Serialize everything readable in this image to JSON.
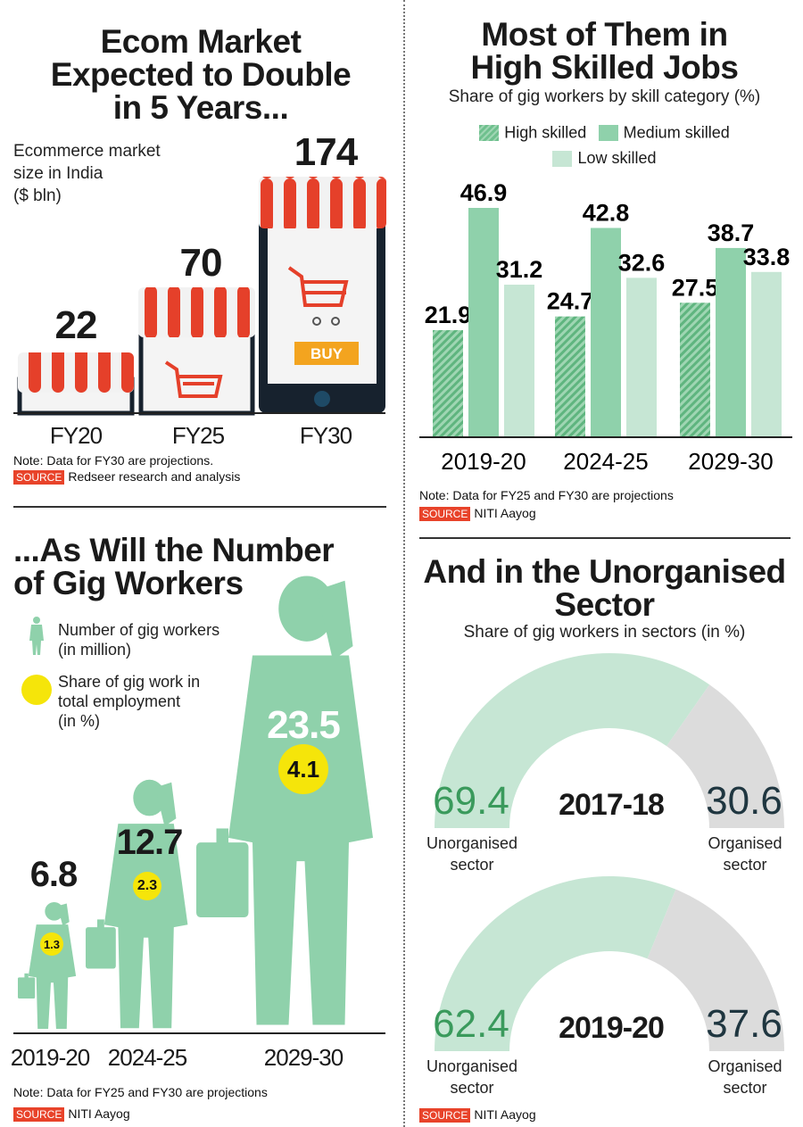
{
  "colors": {
    "green_dark": "#6fc08e",
    "green_mid": "#8fd1ab",
    "green_light": "#c6e6d4",
    "gray": "#dcdcdc",
    "awning_red": "#e5402a",
    "phone": "#17222e",
    "yellow": "#f5e50a",
    "source_red": "#e8432a",
    "buy_orange": "#f3a41f"
  },
  "ecom": {
    "title_lines": [
      "Ecom Market",
      "Expected to Double",
      "in 5 Years..."
    ],
    "subtitle_lines": [
      "Ecommerce market",
      "size in India",
      "($ bln)"
    ],
    "buy_label": "BUY",
    "note": "Note: Data for FY30 are projections.",
    "source_tag": "SOURCE",
    "source": "Redseer research and analysis"
  },
  "skills": {
    "title_lines": [
      "Most of Them in",
      "High Skilled Jobs"
    ],
    "subtitle": "Share of gig workers by skill category (%)",
    "note": "Note: Data for FY25 and FY30 are projections",
    "source_tag": "SOURCE",
    "source": "NITI Aayog"
  },
  "gig": {
    "title_lines": [
      "...As Will the Number",
      "of Gig Workers"
    ],
    "legend": [
      {
        "label_lines": [
          "Number of gig workers",
          "(in million)"
        ]
      },
      {
        "label_lines": [
          "Share of gig work in",
          "total employment",
          "(in %)"
        ]
      }
    ],
    "note": "Note: Data for FY25 and FY30 are projections",
    "source_tag": "SOURCE",
    "source": "NITI Aayog"
  },
  "sector": {
    "title_lines": [
      "And in the Unorganised",
      "Sector"
    ],
    "subtitle": "Share of gig workers in sectors (in %)",
    "left_label_lines": [
      "Unorganised",
      "sector"
    ],
    "right_label_lines": [
      "Organised",
      "sector"
    ],
    "source_tag": "SOURCE",
    "source": "NITI Aayog"
  },
  "chart_data": [
    {
      "type": "bar",
      "title": "Ecommerce market size in India ($ bln)",
      "categories": [
        "FY20",
        "FY25",
        "FY30"
      ],
      "values": [
        22,
        70,
        174
      ],
      "labels": [
        "22",
        "70",
        "174"
      ]
    },
    {
      "type": "bar",
      "title": "Share of gig workers by skill category (%)",
      "categories": [
        "2019-20",
        "2024-25",
        "2029-30"
      ],
      "legend_placement": "top",
      "series": [
        {
          "name": "High skilled",
          "values": [
            21.9,
            24.7,
            27.5
          ],
          "labels": [
            "21.9",
            "24.7",
            "27.5"
          ]
        },
        {
          "name": "Medium skilled",
          "values": [
            46.9,
            42.8,
            38.7
          ],
          "labels": [
            "46.9",
            "42.8",
            "38.7"
          ]
        },
        {
          "name": "Low skilled",
          "values": [
            31.2,
            32.6,
            33.8
          ],
          "labels": [
            "31.2",
            "32.6",
            "33.8"
          ]
        }
      ]
    },
    {
      "type": "bar",
      "title": "Number of gig workers (in million) and share of gig work in total employment (in %)",
      "categories": [
        "2019-20",
        "2024-25",
        "2029-30"
      ],
      "series": [
        {
          "name": "Number of gig workers (in million)",
          "values": [
            6.8,
            12.7,
            23.5
          ],
          "labels": [
            "6.8",
            "12.7",
            "23.5"
          ]
        },
        {
          "name": "Share of gig work in total employment (in %)",
          "values": [
            1.3,
            2.3,
            4.1
          ],
          "labels": [
            "1.3",
            "2.3",
            "4.1"
          ]
        }
      ]
    },
    {
      "type": "pie",
      "title": "Share of gig workers in sectors (in %)",
      "years": [
        {
          "year": "2017-18",
          "unorganised": 69.4,
          "organised": 30.6,
          "unorganised_label": "69.4",
          "organised_label": "30.6"
        },
        {
          "year": "2019-20",
          "unorganised": 62.4,
          "organised": 37.6,
          "unorganised_label": "62.4",
          "organised_label": "37.6"
        }
      ]
    }
  ]
}
